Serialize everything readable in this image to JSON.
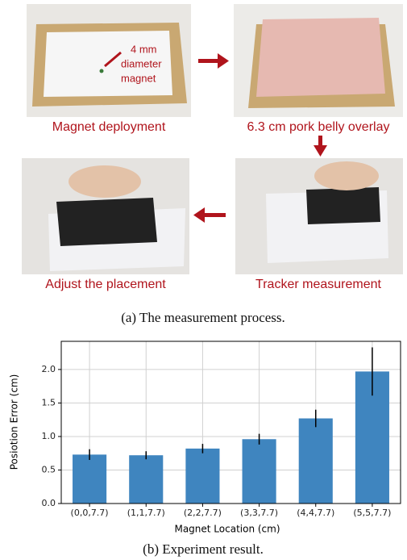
{
  "panel_a": {
    "annotation": [
      "4 mm",
      "diameter",
      "magnet"
    ],
    "steps": [
      "Magnet deployment",
      "6.3 cm pork belly overlay",
      "Tracker measurement",
      "Adjust the placement"
    ],
    "caption": "(a) The measurement process."
  },
  "chart_data": {
    "type": "bar",
    "categories": [
      "(0,0,7.7)",
      "(1,1,7.7)",
      "(2,2,7.7)",
      "(3,3,7.7)",
      "(4,4,7.7)",
      "(5,5,7.7)"
    ],
    "values": [
      0.73,
      0.72,
      0.82,
      0.96,
      1.27,
      1.97
    ],
    "errors": [
      0.08,
      0.06,
      0.07,
      0.08,
      0.13,
      0.36
    ],
    "color": "#3f85bf",
    "xlabel": "Magnet Location (cm)",
    "ylabel": "Posiotion Error (cm)",
    "ylim": [
      0,
      2.42
    ],
    "yticks": [
      {
        "value": 0,
        "label": "0.0"
      },
      {
        "value": 0.5,
        "label": "0.5"
      },
      {
        "value": 1,
        "label": "1.0"
      },
      {
        "value": 1.5,
        "label": "1.5"
      },
      {
        "value": 2,
        "label": "2.0"
      }
    ],
    "grid": true
  },
  "caption_b": "(b) Experiment result."
}
